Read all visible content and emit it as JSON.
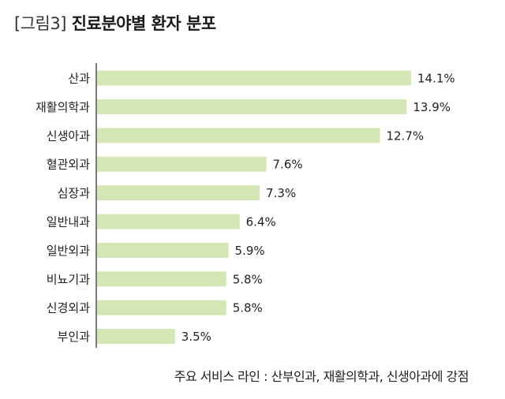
{
  "title": {
    "tag": "[그림3]",
    "text": "진료분야별 환자 분포"
  },
  "colors": {
    "bar": "#d4e6b3",
    "axis": "#333333",
    "text": "#222222"
  },
  "chart_data": {
    "type": "bar",
    "orientation": "horizontal",
    "title": "진료분야별 환자 분포",
    "categories": [
      "산과",
      "재활의학과",
      "신생아과",
      "혈관외과",
      "심장과",
      "일반내과",
      "일반외과",
      "비뇨기과",
      "신경외과",
      "부인과"
    ],
    "values": [
      14.1,
      13.9,
      12.7,
      7.6,
      7.3,
      6.4,
      5.9,
      5.8,
      5.8,
      3.5
    ],
    "data_labels": [
      "14.1%",
      "13.9%",
      "12.7%",
      "7.6%",
      "7.3%",
      "6.4%",
      "5.9%",
      "5.8%",
      "5.8%",
      "3.5%"
    ],
    "unit": "%",
    "xlim": [
      0,
      15
    ],
    "grid": false,
    "legend": "none"
  },
  "footnote": "주요 서비스 라인 : 산부인과, 재활의학과, 신생아과에 강점"
}
